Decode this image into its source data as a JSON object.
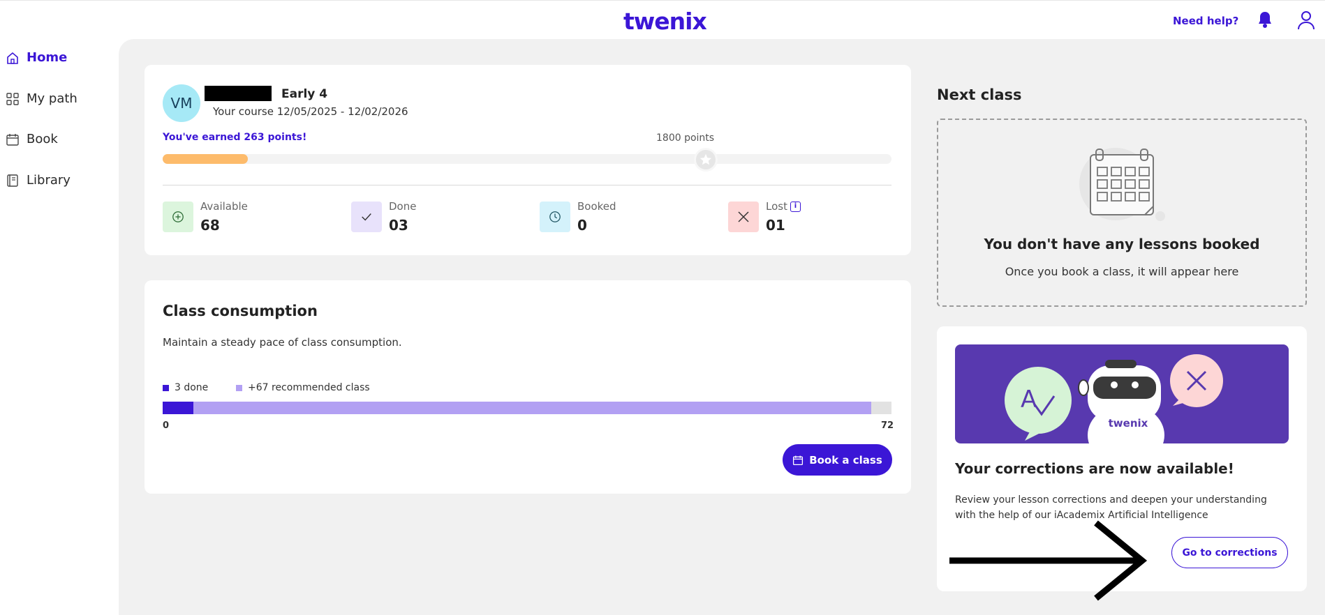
{
  "header": {
    "logo": "twenix",
    "help_label": "Need help?"
  },
  "sidebar": {
    "items": [
      {
        "label": "Home",
        "icon": "home-icon",
        "active": true
      },
      {
        "label": "My path",
        "icon": "grid-icon",
        "active": false
      },
      {
        "label": "Book",
        "icon": "calendar-icon",
        "active": false
      },
      {
        "label": "Library",
        "icon": "book-icon",
        "active": false
      }
    ]
  },
  "profile": {
    "initials": "VM",
    "level": "Early 4",
    "course": "Your course 12/05/2025 - 12/02/2026",
    "earned": "You've earned 263 points!",
    "goal": "1800 points",
    "points": 263,
    "goal_points": 1800
  },
  "stats": [
    {
      "label": "Available",
      "value": "68",
      "icon": "plus-circle-icon",
      "bg": "#dcf5dd"
    },
    {
      "label": "Done",
      "value": "03",
      "icon": "check-icon",
      "bg": "#e8e2fb"
    },
    {
      "label": "Booked",
      "value": "0",
      "icon": "clock-icon",
      "bg": "#d4f2fb"
    },
    {
      "label": "Lost",
      "value": "01",
      "icon": "x-icon",
      "bg": "#fdd6d6"
    }
  ],
  "lost_info": "i",
  "consumption": {
    "title": "Class consumption",
    "subtitle": "Maintain a steady pace of class consumption.",
    "legend_done": "3 done",
    "legend_recommended": "+67 recommended class",
    "done": 3,
    "recommended": 67,
    "total": 72,
    "axis_min": "0",
    "axis_max": "72",
    "book_label": "Book a class"
  },
  "next_class": {
    "title": "Next class",
    "empty_title": "You don't have any lessons booked",
    "empty_sub": "Once you book a class, it will appear here"
  },
  "corrections": {
    "banner_logo": "twenix",
    "title": "Your corrections are now available!",
    "text": "Review your lesson corrections and deepen your understanding with the help of our iAcademix Artificial Intelligence",
    "button": "Go to corrections"
  },
  "colors": {
    "accent": "#3b16d6",
    "progress": "#fdbb6b",
    "recommended": "#b2a0f3"
  }
}
